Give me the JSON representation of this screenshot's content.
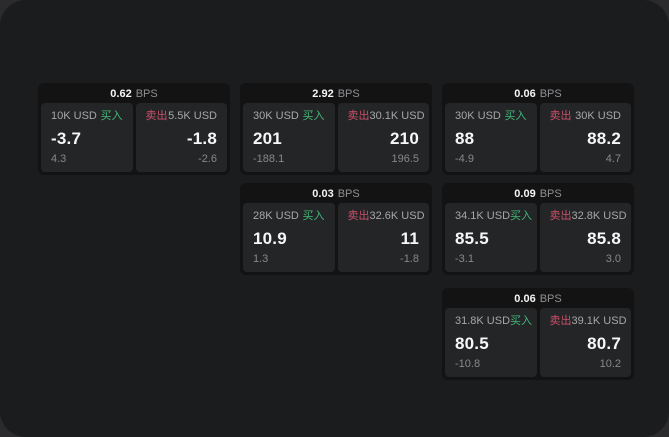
{
  "labels": {
    "buy": "买入",
    "sell": "卖出",
    "bps_unit": "BPS"
  },
  "theme": {
    "surface": "#1b1c1e",
    "card_bg": "#131314",
    "panel_bg": "#242527",
    "buy_color": "#41b979",
    "sell_color": "#cb5068",
    "text_primary": "#f7f7f8",
    "text_muted": "#87888a"
  },
  "cards": [
    {
      "row": 0,
      "col": 0,
      "bps": "0.62",
      "buy": {
        "amount": "10K USD",
        "price": "-3.7",
        "delta": "4.3"
      },
      "sell": {
        "amount": "5.5K USD",
        "price": "-1.8",
        "delta": "-2.6"
      }
    },
    {
      "row": 0,
      "col": 1,
      "bps": "2.92",
      "buy": {
        "amount": "30K USD",
        "price": "201",
        "delta": "-188.1"
      },
      "sell": {
        "amount": "30.1K USD",
        "price": "210",
        "delta": "196.5"
      }
    },
    {
      "row": 0,
      "col": 2,
      "bps": "0.06",
      "buy": {
        "amount": "30K USD",
        "price": "88",
        "delta": "-4.9"
      },
      "sell": {
        "amount": "30K USD",
        "price": "88.2",
        "delta": "4.7"
      }
    },
    {
      "row": 1,
      "col": 1,
      "bps": "0.03",
      "buy": {
        "amount": "28K USD",
        "price": "10.9",
        "delta": "1.3"
      },
      "sell": {
        "amount": "32.6K USD",
        "price": "11",
        "delta": "-1.8"
      }
    },
    {
      "row": 1,
      "col": 2,
      "bps": "0.09",
      "buy": {
        "amount": "34.1K USD",
        "price": "85.5",
        "delta": "-3.1"
      },
      "sell": {
        "amount": "32.8K USD",
        "price": "85.8",
        "delta": "3.0"
      }
    },
    {
      "row": 2,
      "col": 2,
      "bps": "0.06",
      "buy": {
        "amount": "31.8K USD",
        "price": "80.5",
        "delta": "-10.8"
      },
      "sell": {
        "amount": "39.1K USD",
        "price": "80.7",
        "delta": "10.2"
      }
    }
  ]
}
